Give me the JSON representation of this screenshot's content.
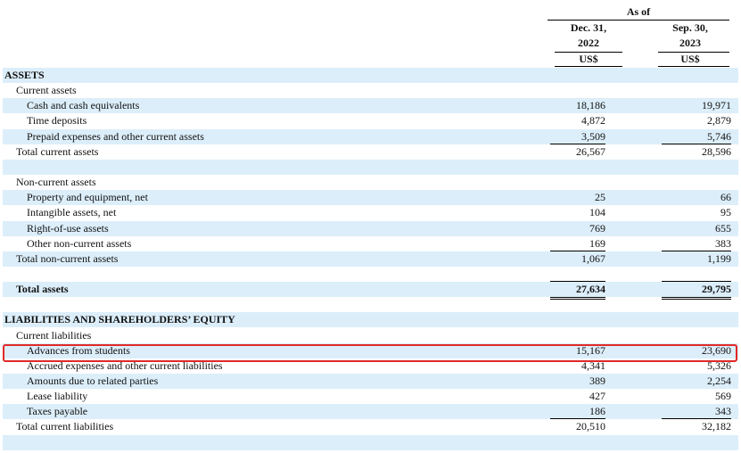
{
  "header": {
    "as_of": "As of",
    "col1": {
      "line1": "Dec. 31,",
      "line2": "2022",
      "currency": "US$"
    },
    "col2": {
      "line1": "Sep. 30,",
      "line2": "2023",
      "currency": "US$"
    }
  },
  "rows": [
    {
      "label": "ASSETS",
      "level": 0,
      "bold": true,
      "shade": true
    },
    {
      "label": "Current assets",
      "level": 1
    },
    {
      "label": "Cash and cash equivalents",
      "level": 2,
      "v1": "18,186",
      "v2": "19,971",
      "shade": true
    },
    {
      "label": "Time deposits",
      "level": 2,
      "v1": "4,872",
      "v2": "2,879"
    },
    {
      "label": "Prepaid expenses and other current assets",
      "level": 2,
      "v1": "3,509",
      "v2": "5,746",
      "shade": true
    },
    {
      "label": "Total current assets",
      "level": 1,
      "v1": "26,567",
      "v2": "28,596",
      "top_rule": true
    },
    {
      "label": "",
      "shade": true
    },
    {
      "label": "Non-current assets",
      "level": 1
    },
    {
      "label": "Property and equipment, net",
      "level": 2,
      "v1": "25",
      "v2": "66",
      "shade": true
    },
    {
      "label": "Intangible assets, net",
      "level": 2,
      "v1": "104",
      "v2": "95"
    },
    {
      "label": "Right-of-use assets",
      "level": 2,
      "v1": "769",
      "v2": "655",
      "shade": true
    },
    {
      "label": "Other non-current assets",
      "level": 2,
      "v1": "169",
      "v2": "383"
    },
    {
      "label": "Total non-current assets",
      "level": 1,
      "v1": "1,067",
      "v2": "1,199",
      "top_rule": true,
      "shade": true
    },
    {
      "label": ""
    },
    {
      "label": "Total assets",
      "level": 1,
      "v1": "27,634",
      "v2": "29,795",
      "bold": true,
      "double_bottom": true,
      "shade": true
    },
    {
      "label": ""
    },
    {
      "label": "LIABILITIES AND SHAREHOLDERS’ EQUITY",
      "level": 0,
      "bold": true,
      "shade": true
    },
    {
      "label": "Current liabilities",
      "level": 1
    },
    {
      "label": "Advances from students",
      "level": 2,
      "v1": "15,167",
      "v2": "23,690",
      "shade": true,
      "highlight": true
    },
    {
      "label": "Accrued expenses and other current liabilities",
      "level": 2,
      "v1": "4,341",
      "v2": "5,326"
    },
    {
      "label": "Amounts due to related parties",
      "level": 2,
      "v1": "389",
      "v2": "2,254",
      "shade": true
    },
    {
      "label": "Lease liability",
      "level": 2,
      "v1": "427",
      "v2": "569"
    },
    {
      "label": "Taxes payable",
      "level": 2,
      "v1": "186",
      "v2": "343",
      "shade": true
    },
    {
      "label": "Total current liabilities",
      "level": 1,
      "v1": "20,510",
      "v2": "32,182",
      "top_rule": true
    },
    {
      "label": "",
      "shade": true
    }
  ]
}
